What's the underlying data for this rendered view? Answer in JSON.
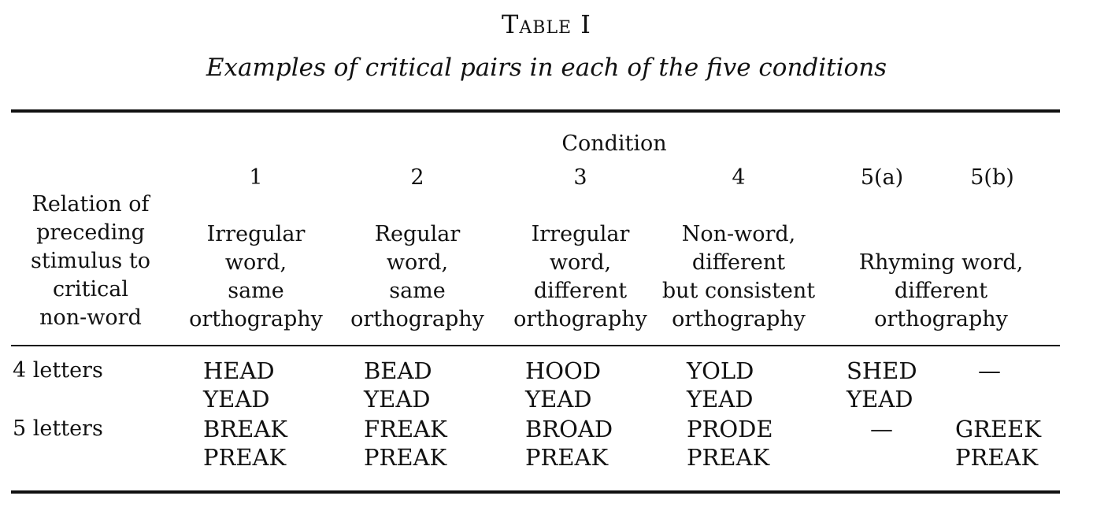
{
  "table": {
    "title": "Table I",
    "caption": "Examples of critical pairs in each of the five conditions",
    "spanner": "Condition",
    "stub_head": "Relation of\npreceding\nstimulus to\ncritical\nnon-word",
    "columns": [
      {
        "number": "1",
        "heading": "Irregular\nword,\nsame\northography"
      },
      {
        "number": "2",
        "heading": "Regular\nword,\nsame\northography"
      },
      {
        "number": "3",
        "heading": "Irregular\nword,\ndifferent\northography"
      },
      {
        "number": "4",
        "heading": "Non-word,\ndifferent\nbut consistent\northography"
      },
      {
        "number": "5(a)"
      },
      {
        "number": "5(b)"
      }
    ],
    "col5_heading": "Rhyming word,\ndifferent\northography",
    "rows": [
      {
        "label": "4 letters",
        "cells": [
          "HEAD\nYEAD",
          "BEAD\nYEAD",
          "HOOD\nYEAD",
          "YOLD\nYEAD",
          "SHED\nYEAD",
          "—"
        ]
      },
      {
        "label": "5 letters",
        "cells": [
          "BREAK\nPREAK",
          "FREAK\nPREAK",
          "BROAD\nPREAK",
          "PRODE\nPREAK",
          "—",
          "GREEK\nPREAK"
        ]
      }
    ]
  }
}
